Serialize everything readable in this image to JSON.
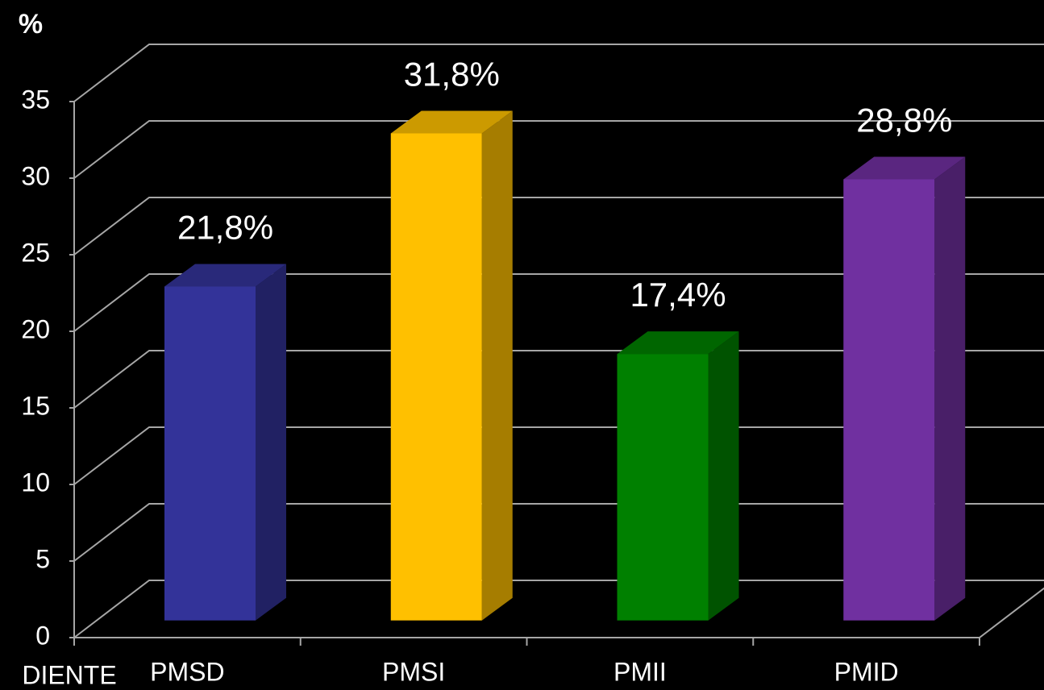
{
  "chart_data": {
    "type": "bar3d",
    "y_axis_label": "%",
    "x_axis_label": "DIENTE",
    "categories": [
      "PMSD",
      "PMSI",
      "PMII",
      "PMID"
    ],
    "values": [
      21.8,
      31.8,
      17.4,
      28.8
    ],
    "value_labels": [
      "21,8%",
      "31,8%",
      "17,4%",
      "28,8%"
    ],
    "colors": [
      "#333399",
      "#ffc000",
      "#008000",
      "#7030a0"
    ],
    "ylim": [
      0,
      35
    ],
    "yticks": [
      0,
      5,
      10,
      15,
      20,
      25,
      30,
      35
    ],
    "grid": true
  }
}
